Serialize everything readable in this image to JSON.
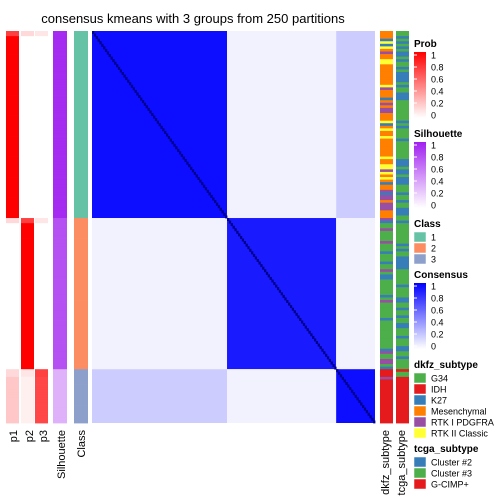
{
  "chart_data": {
    "type": "heatmap",
    "title": "consensus kmeans with 3 groups from 250 partitions",
    "groups": [
      {
        "name": "1",
        "count": 73
      },
      {
        "name": "2",
        "count": 59
      },
      {
        "name": "3",
        "count": 21
      }
    ],
    "annotation_columns": [
      "p1",
      "p2",
      "p3",
      "Silhouette",
      "Class"
    ],
    "right_annotation_columns": [
      "dkfz_subtype",
      "tcga_subtype"
    ],
    "block_consensus": [
      [
        0.95,
        0.05,
        0.2
      ],
      [
        0.05,
        0.9,
        0.05
      ],
      [
        0.2,
        0.05,
        0.95
      ]
    ],
    "legends": [
      {
        "title": "Prob",
        "type": "gradient",
        "ticks": [
          "1",
          "0.8",
          "0.6",
          "0.4",
          "0.2",
          "0"
        ],
        "colors": [
          "#ff0000",
          "#ffffff"
        ]
      },
      {
        "title": "Silhouette",
        "type": "gradient",
        "ticks": [
          "1",
          "0.8",
          "0.6",
          "0.4",
          "0.2",
          "0"
        ],
        "colors": [
          "#a020f0",
          "#ffffff"
        ]
      },
      {
        "title": "Class",
        "type": "discrete",
        "items": [
          {
            "label": "1",
            "color": "#66c2a5"
          },
          {
            "label": "2",
            "color": "#fc8d62"
          },
          {
            "label": "3",
            "color": "#8da0cb"
          }
        ]
      },
      {
        "title": "Consensus",
        "type": "gradient",
        "ticks": [
          "1",
          "0.8",
          "0.6",
          "0.4",
          "0.2",
          "0"
        ],
        "colors": [
          "#0000ff",
          "#ffffff"
        ]
      },
      {
        "title": "dkfz_subtype",
        "type": "discrete",
        "items": [
          {
            "label": "G34",
            "color": "#4daf4a"
          },
          {
            "label": "IDH",
            "color": "#e41a1c"
          },
          {
            "label": "K27",
            "color": "#377eb8"
          },
          {
            "label": "Mesenchymal",
            "color": "#ff7f00"
          },
          {
            "label": "RTK I PDGFRA",
            "color": "#984ea3"
          },
          {
            "label": "RTK II Classic",
            "color": "#ffff33"
          }
        ]
      },
      {
        "title": "tcga_subtype",
        "type": "discrete",
        "items": [
          {
            "label": "Cluster #2",
            "color": "#377eb8"
          },
          {
            "label": "Cluster #3",
            "color": "#4daf4a"
          },
          {
            "label": "G-CIMP+",
            "color": "#e41a1c"
          }
        ]
      }
    ]
  }
}
